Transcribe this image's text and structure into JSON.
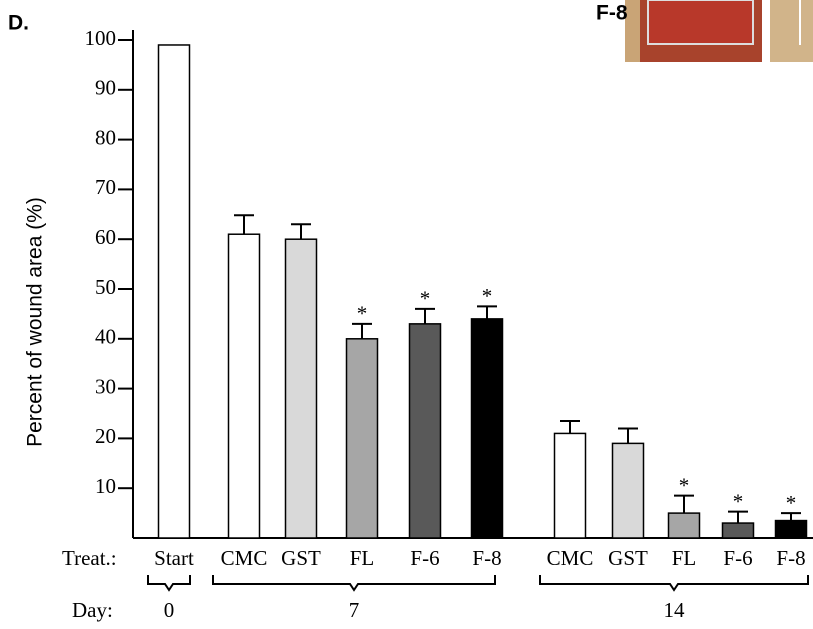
{
  "chart_data": {
    "type": "bar",
    "panel_label": "D.",
    "inset_label": "F-8",
    "y_label": "Percent of wound area (%)",
    "treat_label": "Treat.:",
    "day_label": "Day:",
    "day_labels": [
      "0",
      "7",
      "14"
    ],
    "categories": [
      "Start",
      "CMC",
      "GST",
      "FL",
      "F-6",
      "F-8",
      "CMC",
      "GST",
      "FL",
      "F-6",
      "F-8"
    ],
    "values": [
      99,
      61,
      60,
      40,
      43,
      44,
      21,
      19,
      5,
      3,
      3.5
    ],
    "errors": [
      null,
      3.8,
      3,
      3,
      3,
      2.5,
      2.5,
      3,
      3.5,
      2.3,
      1.5
    ],
    "stars": [
      null,
      null,
      null,
      "*",
      "*",
      "*",
      null,
      null,
      "*",
      "*",
      "*"
    ],
    "colors": [
      "#ffffff",
      "#ffffff",
      "#d9d9d9",
      "#a6a6a6",
      "#595959",
      "#000000",
      "#ffffff",
      "#d9d9d9",
      "#a6a6a6",
      "#595959",
      "#000000"
    ],
    "ylim": [
      0,
      100
    ],
    "yticks": [
      10,
      20,
      30,
      40,
      50,
      60,
      70,
      80,
      90,
      100
    ]
  }
}
